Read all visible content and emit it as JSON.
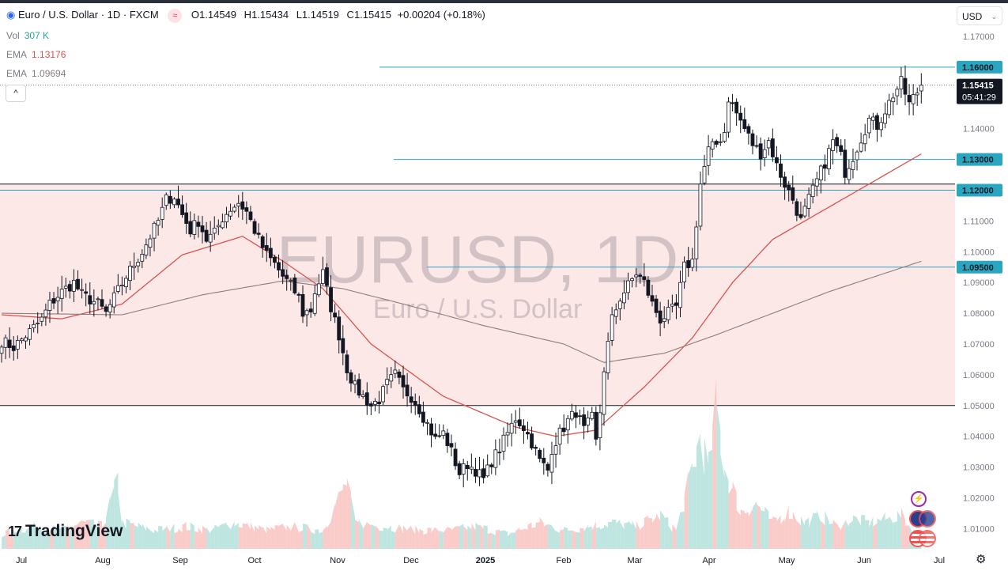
{
  "header": {
    "symbol": "Euro / U.S. Dollar · 1D · FXCM",
    "open_label": "O",
    "open": "1.14549",
    "high_label": "H",
    "high": "1.15434",
    "low_label": "L",
    "low": "1.14519",
    "close_label": "C",
    "close": "1.15415",
    "change": "+0.00204 (+0.18%)"
  },
  "indicators": {
    "vol_label": "Vol",
    "vol_value": "307 K",
    "ema1_label": "EMA",
    "ema1_value": "1.13176",
    "ema2_label": "EMA",
    "ema2_value": "1.09694"
  },
  "currency": "USD",
  "watermark": {
    "symbol": "EURUSD, 1D",
    "name": "Euro / U.S. Dollar"
  },
  "brand": "TradingView",
  "price_tag": {
    "price": "1.15415",
    "countdown": "05:41:29"
  },
  "colors": {
    "up": "#26a69a",
    "down": "#ef5350",
    "level": "#2aa6c0",
    "zone": "#fde8e8",
    "ema_fast": "#d9534f",
    "ema_slow": "#8c7d7d"
  },
  "chart_data": {
    "type": "candlestick",
    "x_labels": [
      "Jul",
      "Aug",
      "Sep",
      "Oct",
      "Nov",
      "Dec",
      "2025",
      "Feb",
      "Mar",
      "Apr",
      "May",
      "Jun",
      "Jul"
    ],
    "y_ticks": [
      "1.17000",
      "1.16000",
      "1.15000",
      "1.14000",
      "1.13000",
      "1.12000",
      "1.11000",
      "1.10000",
      "1.09000",
      "1.08000",
      "1.07000",
      "1.06000",
      "1.05000",
      "1.04000",
      "1.03000",
      "1.02000",
      "1.01000"
    ],
    "ylim": [
      1.0,
      1.17
    ],
    "zone": [
      1.05,
      1.122
    ],
    "levels": [
      "1.16000",
      "1.13000",
      "1.12000",
      "1.09500"
    ],
    "current_price": 1.15415,
    "price_path": [
      [
        0,
        1.071
      ],
      [
        3,
        1.069
      ],
      [
        7,
        1.074
      ],
      [
        10,
        1.078
      ],
      [
        12,
        1.083
      ],
      [
        15,
        1.087
      ],
      [
        18,
        1.09
      ],
      [
        20,
        1.086
      ],
      [
        24,
        1.083
      ],
      [
        26,
        1.08
      ],
      [
        28,
        1.085
      ],
      [
        31,
        1.092
      ],
      [
        33,
        1.096
      ],
      [
        35,
        1.1
      ],
      [
        37,
        1.105
      ],
      [
        39,
        1.11
      ],
      [
        41,
        1.117
      ],
      [
        43,
        1.118
      ],
      [
        45,
        1.112
      ],
      [
        47,
        1.107
      ],
      [
        49,
        1.11
      ],
      [
        51,
        1.104
      ],
      [
        53,
        1.106
      ],
      [
        55,
        1.111
      ],
      [
        57,
        1.114
      ],
      [
        59,
        1.116
      ],
      [
        61,
        1.113
      ],
      [
        62,
        1.11
      ],
      [
        64,
        1.104
      ],
      [
        66,
        1.099
      ],
      [
        68,
        1.096
      ],
      [
        70,
        1.092
      ],
      [
        72,
        1.089
      ],
      [
        74,
        1.085
      ],
      [
        75,
        1.08
      ],
      [
        77,
        1.081
      ],
      [
        78,
        1.087
      ],
      [
        80,
        1.093
      ],
      [
        82,
        1.082
      ],
      [
        84,
        1.073
      ],
      [
        86,
        1.062
      ],
      [
        88,
        1.056
      ],
      [
        90,
        1.053
      ],
      [
        92,
        1.05
      ],
      [
        94,
        1.052
      ],
      [
        96,
        1.057
      ],
      [
        98,
        1.06
      ],
      [
        100,
        1.055
      ],
      [
        102,
        1.053
      ],
      [
        104,
        1.049
      ],
      [
        106,
        1.044
      ],
      [
        108,
        1.039
      ],
      [
        110,
        1.041
      ],
      [
        112,
        1.035
      ],
      [
        114,
        1.028
      ],
      [
        116,
        1.031
      ],
      [
        118,
        1.029
      ],
      [
        120,
        1.026
      ],
      [
        122,
        1.032
      ],
      [
        124,
        1.036
      ],
      [
        126,
        1.041
      ],
      [
        128,
        1.046
      ],
      [
        130,
        1.043
      ],
      [
        132,
        1.038
      ],
      [
        134,
        1.032
      ],
      [
        136,
        1.029
      ],
      [
        137,
        1.036
      ],
      [
        139,
        1.041
      ],
      [
        141,
        1.045
      ],
      [
        143,
        1.048
      ],
      [
        145,
        1.042
      ],
      [
        147,
        1.046
      ],
      [
        148,
        1.038
      ],
      [
        149,
        1.048
      ],
      [
        150,
        1.062
      ],
      [
        152,
        1.078
      ],
      [
        154,
        1.085
      ],
      [
        156,
        1.089
      ],
      [
        158,
        1.093
      ],
      [
        160,
        1.09
      ],
      [
        162,
        1.083
      ],
      [
        164,
        1.078
      ],
      [
        166,
        1.08
      ],
      [
        168,
        1.082
      ],
      [
        170,
        1.095
      ],
      [
        172,
        1.097
      ],
      [
        174,
        1.122
      ],
      [
        176,
        1.133
      ],
      [
        178,
        1.135
      ],
      [
        180,
        1.139
      ],
      [
        181,
        1.15
      ],
      [
        183,
        1.145
      ],
      [
        185,
        1.14
      ],
      [
        187,
        1.135
      ],
      [
        189,
        1.132
      ],
      [
        191,
        1.136
      ],
      [
        193,
        1.128
      ],
      [
        195,
        1.122
      ],
      [
        197,
        1.117
      ],
      [
        199,
        1.11
      ],
      [
        201,
        1.117
      ],
      [
        203,
        1.123
      ],
      [
        205,
        1.129
      ],
      [
        207,
        1.136
      ],
      [
        209,
        1.131
      ],
      [
        210,
        1.126
      ],
      [
        212,
        1.131
      ],
      [
        214,
        1.137
      ],
      [
        216,
        1.143
      ],
      [
        218,
        1.141
      ],
      [
        220,
        1.146
      ],
      [
        222,
        1.151
      ],
      [
        224,
        1.155
      ],
      [
        226,
        1.148
      ],
      [
        228,
        1.152
      ],
      [
        229,
        1.154
      ]
    ],
    "ema_fast": [
      [
        0,
        1.0795
      ],
      [
        15,
        1.0782
      ],
      [
        30,
        1.083
      ],
      [
        45,
        1.099
      ],
      [
        60,
        1.105
      ],
      [
        70,
        1.097
      ],
      [
        80,
        1.088
      ],
      [
        92,
        1.07
      ],
      [
        110,
        1.053
      ],
      [
        128,
        1.043
      ],
      [
        138,
        1.04
      ],
      [
        148,
        1.042
      ],
      [
        160,
        1.056
      ],
      [
        172,
        1.072
      ],
      [
        182,
        1.09
      ],
      [
        192,
        1.104
      ],
      [
        204,
        1.113
      ],
      [
        216,
        1.122
      ],
      [
        229,
        1.1318
      ]
    ],
    "ema_slow": [
      [
        0,
        1.08
      ],
      [
        30,
        1.0795
      ],
      [
        50,
        1.086
      ],
      [
        70,
        1.0905
      ],
      [
        85,
        1.088
      ],
      [
        100,
        1.083
      ],
      [
        120,
        1.076
      ],
      [
        140,
        1.07
      ],
      [
        150,
        1.064
      ],
      [
        165,
        1.067
      ],
      [
        178,
        1.073
      ],
      [
        192,
        1.08
      ],
      [
        206,
        1.087
      ],
      [
        229,
        1.0969
      ]
    ],
    "volume": [
      [
        0,
        0.04
      ],
      [
        8,
        0.06
      ],
      [
        15,
        0.05
      ],
      [
        20,
        0.07
      ],
      [
        25,
        0.06
      ],
      [
        29,
        0.18
      ],
      [
        30,
        0.07
      ],
      [
        38,
        0.05
      ],
      [
        46,
        0.06
      ],
      [
        52,
        0.05
      ],
      [
        58,
        0.07
      ],
      [
        66,
        0.05
      ],
      [
        72,
        0.06
      ],
      [
        80,
        0.05
      ],
      [
        86,
        0.18
      ],
      [
        88,
        0.07
      ],
      [
        96,
        0.06
      ],
      [
        104,
        0.05
      ],
      [
        112,
        0.05
      ],
      [
        118,
        0.06
      ],
      [
        126,
        0.04
      ],
      [
        134,
        0.07
      ],
      [
        140,
        0.05
      ],
      [
        146,
        0.06
      ],
      [
        152,
        0.07
      ],
      [
        158,
        0.06
      ],
      [
        164,
        0.09
      ],
      [
        168,
        0.05
      ],
      [
        171,
        0.17
      ],
      [
        174,
        0.3
      ],
      [
        176,
        0.21
      ],
      [
        178,
        0.38
      ],
      [
        180,
        0.22
      ],
      [
        184,
        0.1
      ],
      [
        188,
        0.12
      ],
      [
        192,
        0.07
      ],
      [
        196,
        0.1
      ],
      [
        200,
        0.07
      ],
      [
        204,
        0.09
      ],
      [
        208,
        0.06
      ],
      [
        212,
        0.08
      ],
      [
        216,
        0.07
      ],
      [
        220,
        0.08
      ],
      [
        224,
        0.09
      ],
      [
        227,
        0.05
      ],
      [
        229,
        0.03
      ]
    ]
  }
}
